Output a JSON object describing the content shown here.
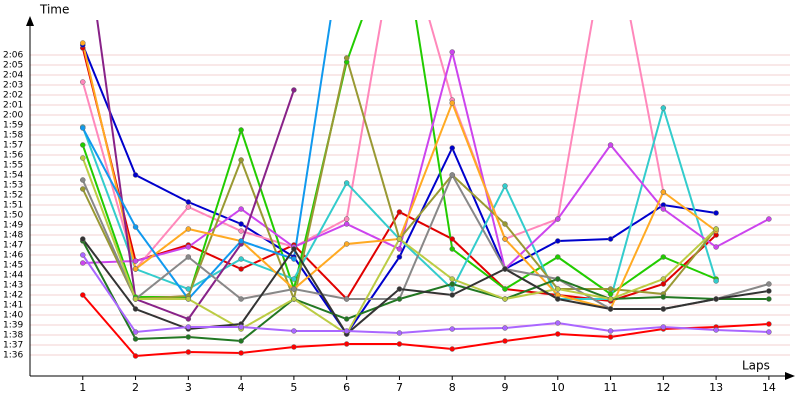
{
  "chart_data": {
    "type": "line",
    "y_label": "Time",
    "x_label": "Laps",
    "x": [
      1,
      2,
      3,
      4,
      5,
      6,
      7,
      8,
      9,
      10,
      11,
      12,
      13,
      14
    ],
    "xlim": [
      0,
      14.4
    ],
    "xticks": [
      1,
      2,
      3,
      4,
      5,
      6,
      7,
      8,
      9,
      10,
      11,
      12,
      13,
      14
    ],
    "ylim": [
      94,
      128.5
    ],
    "yticks": [
      {
        "value": 96,
        "label": "1:36"
      },
      {
        "value": 97,
        "label": "1:37"
      },
      {
        "value": 98,
        "label": "1:38"
      },
      {
        "value": 99,
        "label": "1:39"
      },
      {
        "value": 100,
        "label": "1:40"
      },
      {
        "value": 101,
        "label": "1:41"
      },
      {
        "value": 102,
        "label": "1:42"
      },
      {
        "value": 103,
        "label": "1:43"
      },
      {
        "value": 104,
        "label": "1:44"
      },
      {
        "value": 105,
        "label": "1:45"
      },
      {
        "value": 106,
        "label": "1:46"
      },
      {
        "value": 107,
        "label": "1:47"
      },
      {
        "value": 108,
        "label": "1:48"
      },
      {
        "value": 109,
        "label": "1:49"
      },
      {
        "value": 110,
        "label": "1:50"
      },
      {
        "value": 111,
        "label": "1:51"
      },
      {
        "value": 112,
        "label": "1:52"
      },
      {
        "value": 113,
        "label": "1:53"
      },
      {
        "value": 114,
        "label": "1:54"
      },
      {
        "value": 115,
        "label": "1:55"
      },
      {
        "value": 116,
        "label": "1:56"
      },
      {
        "value": 117,
        "label": "1:57"
      },
      {
        "value": 118,
        "label": "1:58"
      },
      {
        "value": 119,
        "label": "1:59"
      },
      {
        "value": 120,
        "label": "2:00"
      },
      {
        "value": 121,
        "label": "2:01"
      },
      {
        "value": 122,
        "label": "2:02"
      },
      {
        "value": 123,
        "label": "2:03"
      },
      {
        "value": 124,
        "label": "2:04"
      },
      {
        "value": 125,
        "label": "2:05"
      },
      {
        "value": 126,
        "label": "2:06"
      }
    ],
    "grid": true,
    "grid_color": "#f3d0d0",
    "series": [
      {
        "color": "#ff0000",
        "values": [
          102,
          95.9,
          96.3,
          96.2,
          96.8,
          97.1,
          97.1,
          96.6,
          97.4,
          98.1,
          97.8,
          98.6,
          98.8,
          99.1
        ]
      },
      {
        "color": "#e00000",
        "values": [
          126.7,
          105.4,
          107,
          104.6,
          107,
          101.6,
          110.3,
          107.6,
          102.6,
          102,
          101.4,
          103.1,
          108,
          null
        ]
      },
      {
        "color": "#0000cc",
        "values": [
          127,
          114,
          111.3,
          109.1,
          105.8,
          98.1,
          105.8,
          116.7,
          104.6,
          107.4,
          107.6,
          111,
          110.2,
          null
        ]
      },
      {
        "color": "#ff88bb",
        "values": [
          123.3,
          104.6,
          110.8,
          108.4,
          106.8,
          109.6,
          140,
          121.5,
          107.6,
          109.6,
          140,
          112.3,
          null,
          null
        ]
      },
      {
        "color": "#22cc00",
        "values": [
          117,
          101.8,
          101.8,
          118.5,
          102.6,
          125.3,
          140,
          106.6,
          102.6,
          105.8,
          102.1,
          105.8,
          103.6,
          null
        ]
      },
      {
        "color": "#33cccc",
        "values": [
          118.8,
          104.6,
          102.6,
          105.6,
          103.6,
          113.2,
          107.6,
          102.6,
          112.9,
          101.6,
          101.6,
          120.7,
          103.4,
          null
        ]
      },
      {
        "color": "#cc44ee",
        "values": [
          105.2,
          105.4,
          106.8,
          110.6,
          106.8,
          109.1,
          106.6,
          126.3,
          104.6,
          109.6,
          117,
          110.6,
          106.8,
          109.6
        ]
      },
      {
        "color": "#999933",
        "values": [
          112.6,
          101.6,
          101.9,
          115.5,
          101.6,
          125.7,
          107.6,
          114,
          109.1,
          102.6,
          102.6,
          102.1,
          108.6,
          null
        ]
      },
      {
        "color": "#ffaa22",
        "values": [
          127.2,
          104.6,
          108.6,
          107.4,
          102.6,
          107.1,
          107.6,
          121.2,
          107.6,
          102,
          100.6,
          112.3,
          108.4,
          null
        ]
      },
      {
        "color": "#882288",
        "values": [
          140,
          101.6,
          99.6,
          107.1,
          122.5,
          null,
          null,
          null,
          null,
          null,
          null,
          null,
          null,
          null
        ]
      },
      {
        "color": "#1199ee",
        "values": [
          118.7,
          108.8,
          101.6,
          107.4,
          105.6,
          140,
          null,
          null,
          null,
          null,
          null,
          null,
          null,
          null
        ]
      },
      {
        "color": "#888888",
        "values": [
          113.5,
          101.6,
          105.8,
          101.6,
          102.6,
          101.6,
          101.6,
          114,
          104.6,
          103.6,
          100.6,
          100.6,
          101.6,
          103.1
        ]
      },
      {
        "color": "#227722",
        "values": [
          107.4,
          97.6,
          97.8,
          97.4,
          101.6,
          99.6,
          101.6,
          103.1,
          101.6,
          103.6,
          101.6,
          101.8,
          101.6,
          101.6
        ]
      },
      {
        "color": "#bbcc44",
        "values": [
          115.7,
          101.6,
          101.6,
          98.6,
          101.6,
          98.1,
          107.6,
          103.6,
          101.6,
          102.6,
          101.6,
          103.6,
          108.6,
          null
        ]
      },
      {
        "color": "#333333",
        "values": [
          107.6,
          100.6,
          98.6,
          99.1,
          106.6,
          98.1,
          102.6,
          102,
          104.6,
          101.6,
          100.6,
          100.6,
          101.6,
          102.4
        ]
      },
      {
        "color": "#aa66ff",
        "values": [
          106,
          98.3,
          98.8,
          98.8,
          98.4,
          98.4,
          98.2,
          98.6,
          98.7,
          99.2,
          98.4,
          98.8,
          98.5,
          98.3
        ]
      }
    ]
  }
}
